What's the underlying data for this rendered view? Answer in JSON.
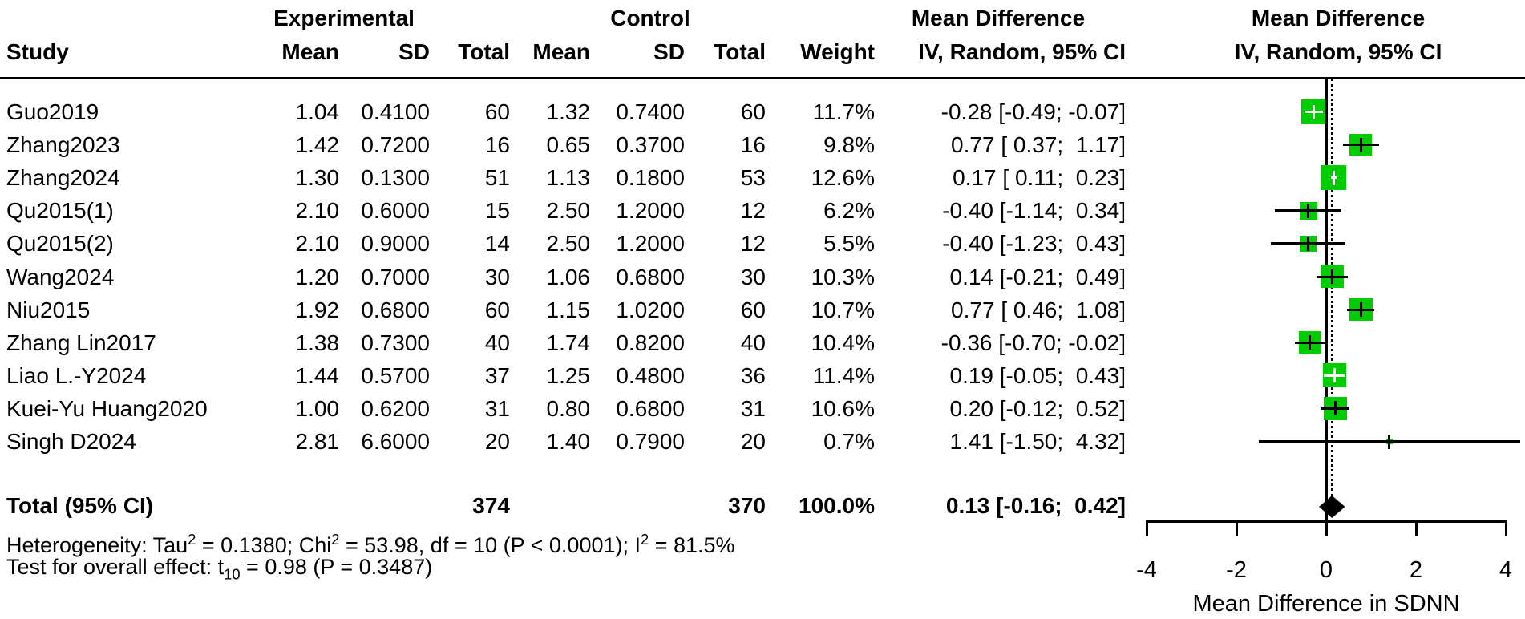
{
  "headers": {
    "group1": "Experimental",
    "group2": "Control",
    "study": "Study",
    "mean": "Mean",
    "sd": "SD",
    "total": "Total",
    "weight": "Weight",
    "md_col_line1": "Mean Difference",
    "md_col_line2": "IV, Random, 95% CI",
    "plot_col_line1": "Mean Difference",
    "plot_col_line2": "IV, Random, 95% CI"
  },
  "chart_data": {
    "type": "forest",
    "effect_measure": "Mean Difference",
    "model": "IV, Random, 95% CI",
    "square_color": "#00CD00",
    "line_color": "#000000",
    "studies": [
      {
        "label": "Guo2019",
        "exp_mean": "1.04",
        "exp_sd": "0.4100",
        "exp_total": "60",
        "ctrl_mean": "1.32",
        "ctrl_sd": "0.7400",
        "ctrl_total": "60",
        "weight": "11.7%",
        "weight_pct": 11.7,
        "md": -0.28,
        "ci_low": -0.49,
        "ci_high": -0.07,
        "md_text": "-0.28 [-0.49; -0.07]"
      },
      {
        "label": "Zhang2023",
        "exp_mean": "1.42",
        "exp_sd": "0.7200",
        "exp_total": "16",
        "ctrl_mean": "0.65",
        "ctrl_sd": "0.3700",
        "ctrl_total": "16",
        "weight": "9.8%",
        "weight_pct": 9.8,
        "md": 0.77,
        "ci_low": 0.37,
        "ci_high": 1.17,
        "md_text": "0.77 [ 0.37;  1.17]"
      },
      {
        "label": "Zhang2024",
        "exp_mean": "1.30",
        "exp_sd": "0.1300",
        "exp_total": "51",
        "ctrl_mean": "1.13",
        "ctrl_sd": "0.1800",
        "ctrl_total": "53",
        "weight": "12.6%",
        "weight_pct": 12.6,
        "md": 0.17,
        "ci_low": 0.11,
        "ci_high": 0.23,
        "md_text": "0.17 [ 0.11;  0.23]"
      },
      {
        "label": "Qu2015(1)",
        "exp_mean": "2.10",
        "exp_sd": "0.6000",
        "exp_total": "15",
        "ctrl_mean": "2.50",
        "ctrl_sd": "1.2000",
        "ctrl_total": "12",
        "weight": "6.2%",
        "weight_pct": 6.2,
        "md": -0.4,
        "ci_low": -1.14,
        "ci_high": 0.34,
        "md_text": "-0.40 [-1.14;  0.34]"
      },
      {
        "label": "Qu2015(2)",
        "exp_mean": "2.10",
        "exp_sd": "0.9000",
        "exp_total": "14",
        "ctrl_mean": "2.50",
        "ctrl_sd": "1.2000",
        "ctrl_total": "12",
        "weight": "5.5%",
        "weight_pct": 5.5,
        "md": -0.4,
        "ci_low": -1.23,
        "ci_high": 0.43,
        "md_text": "-0.40 [-1.23;  0.43]"
      },
      {
        "label": "Wang2024",
        "exp_mean": "1.20",
        "exp_sd": "0.7000",
        "exp_total": "30",
        "ctrl_mean": "1.06",
        "ctrl_sd": "0.6800",
        "ctrl_total": "30",
        "weight": "10.3%",
        "weight_pct": 10.3,
        "md": 0.14,
        "ci_low": -0.21,
        "ci_high": 0.49,
        "md_text": "0.14 [-0.21;  0.49]"
      },
      {
        "label": "Niu2015",
        "exp_mean": "1.92",
        "exp_sd": "0.6800",
        "exp_total": "60",
        "ctrl_mean": "1.15",
        "ctrl_sd": "1.0200",
        "ctrl_total": "60",
        "weight": "10.7%",
        "weight_pct": 10.7,
        "md": 0.77,
        "ci_low": 0.46,
        "ci_high": 1.08,
        "md_text": "0.77 [ 0.46;  1.08]"
      },
      {
        "label": "Zhang Lin2017",
        "exp_mean": "1.38",
        "exp_sd": "0.7300",
        "exp_total": "40",
        "ctrl_mean": "1.74",
        "ctrl_sd": "0.8200",
        "ctrl_total": "40",
        "weight": "10.4%",
        "weight_pct": 10.4,
        "md": -0.36,
        "ci_low": -0.7,
        "ci_high": -0.02,
        "md_text": "-0.36 [-0.70; -0.02]"
      },
      {
        "label": "Liao L.-Y2024",
        "exp_mean": "1.44",
        "exp_sd": "0.5700",
        "exp_total": "37",
        "ctrl_mean": "1.25",
        "ctrl_sd": "0.4800",
        "ctrl_total": "36",
        "weight": "11.4%",
        "weight_pct": 11.4,
        "md": 0.19,
        "ci_low": -0.05,
        "ci_high": 0.43,
        "md_text": "0.19 [-0.05;  0.43]"
      },
      {
        "label": "Kuei-Yu Huang2020",
        "exp_mean": "1.00",
        "exp_sd": "0.6200",
        "exp_total": "31",
        "ctrl_mean": "0.80",
        "ctrl_sd": "0.6800",
        "ctrl_total": "31",
        "weight": "10.6%",
        "weight_pct": 10.6,
        "md": 0.2,
        "ci_low": -0.12,
        "ci_high": 0.52,
        "md_text": "0.20 [-0.12;  0.52]"
      },
      {
        "label": "Singh D2024",
        "exp_mean": "2.81",
        "exp_sd": "6.6000",
        "exp_total": "20",
        "ctrl_mean": "1.40",
        "ctrl_sd": "0.7900",
        "ctrl_total": "20",
        "weight": "0.7%",
        "weight_pct": 0.7,
        "md": 1.41,
        "ci_low": -1.5,
        "ci_high": 4.32,
        "md_text": "1.41 [-1.50;  4.32]"
      }
    ],
    "total": {
      "label": "Total (95% CI)",
      "exp_total": "374",
      "ctrl_total": "370",
      "weight": "100.0%",
      "md": 0.13,
      "ci_low": -0.16,
      "ci_high": 0.42,
      "md_text": "0.13 [-0.16;  0.42]"
    },
    "pooled_line": 0.13,
    "axis": {
      "xlim": [
        -4,
        4
      ],
      "ticks": [
        "-4",
        "-2",
        "0",
        "2",
        "4"
      ],
      "tick_values": [
        -4,
        -2,
        0,
        2,
        4
      ],
      "xlabel": "Mean Difference in SDNN",
      "grid": false
    },
    "heterogeneity_segments": [
      {
        "t": "Heterogeneity: Tau"
      },
      {
        "sup": "2"
      },
      {
        "t": " = 0.1380; Chi"
      },
      {
        "sup": "2"
      },
      {
        "t": " = 53.98, df = 10 (P < 0.0001); I"
      },
      {
        "sup": "2"
      },
      {
        "t": " = 81.5%"
      }
    ],
    "overall_effect_segments": [
      {
        "t": "Test for overall effect: t"
      },
      {
        "sub": "10"
      },
      {
        "t": " = 0.98 (P = 0.3487)"
      }
    ]
  }
}
